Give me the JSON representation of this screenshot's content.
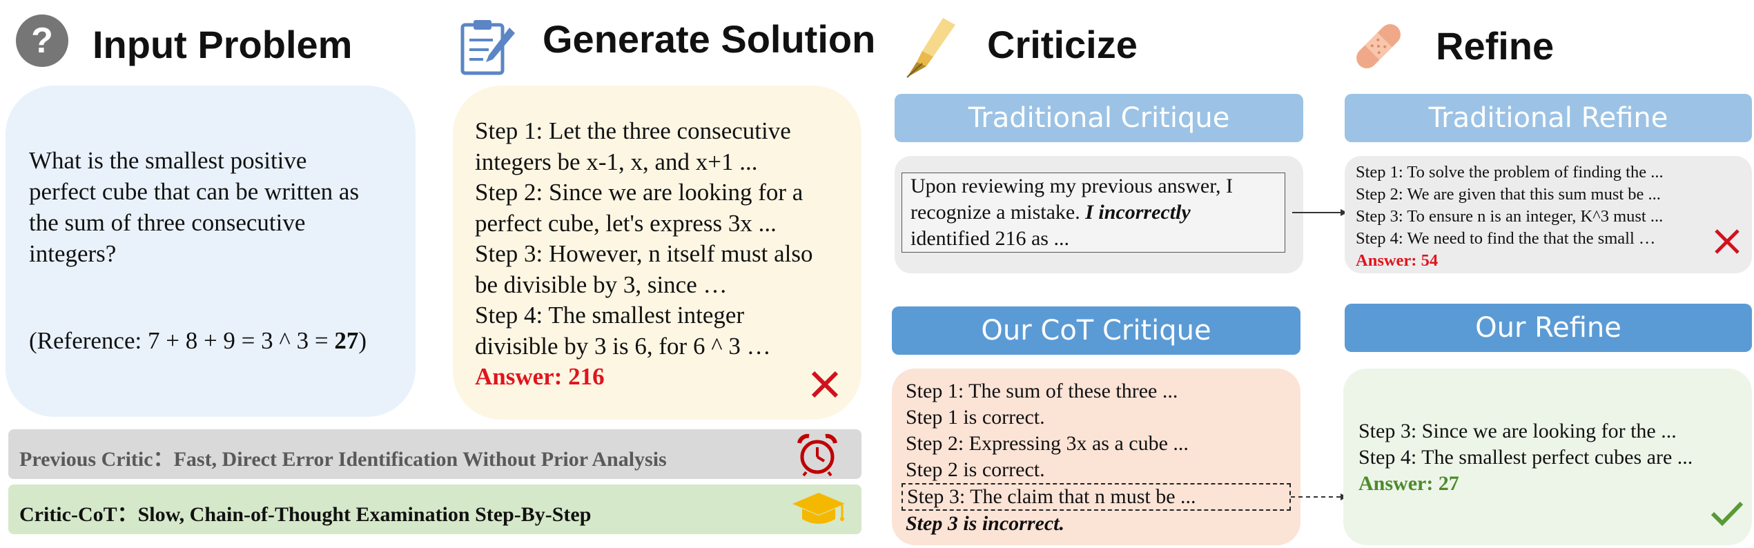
{
  "stages": {
    "input": "Input Problem",
    "generate": "Generate Solution",
    "criticize": "Criticize",
    "refine": "Refine"
  },
  "problem": {
    "lines": [
      "What is the smallest positive",
      "perfect cube that can be written as",
      "the sum of three consecutive",
      "integers?"
    ],
    "reference_prefix": "(Reference: 7 + 8 + 9 = 3 ^ 3 = ",
    "reference_value": "27",
    "reference_suffix": ")"
  },
  "solution": {
    "lines": [
      "Step 1: Let the three consecutive",
      "integers be x-1, x, and x+1 ...",
      "Step 2: Since we are looking for a",
      "perfect cube, let's express 3x ...",
      "Step 3: However, n itself must also",
      "be divisible by 3, since …",
      "Step 4: The smallest integer",
      "divisible by 3 is 6, for 6 ^ 3 …"
    ],
    "answer": "Answer: 216"
  },
  "traditional_critique": {
    "title": "Traditional Critique",
    "line1": "Upon reviewing my previous answer, I",
    "line2_plain": "recognize a mistake. ",
    "line2_emph": "I incorrectly",
    "line3": "identified 216 as ..."
  },
  "traditional_refine": {
    "title": "Traditional Refine",
    "lines": [
      "Step 1: To solve the problem of finding the ...",
      "Step 2: We are given that this sum must be ...",
      "Step 3: To ensure n is an integer, K^3 must ...",
      "Step 4: We need to find the that the small …"
    ],
    "answer": "Answer: 54"
  },
  "cot_critique": {
    "title": "Our CoT Critique",
    "lines": [
      "Step 1: The sum of these three ...",
      "Step 1 is correct.",
      "Step 2: Expressing 3x as a cube ...",
      "Step 2 is correct."
    ],
    "highlight": "Step 3: The claim that n must be ...",
    "verdict": "Step 3 is incorrect."
  },
  "our_refine": {
    "title": "Our Refine",
    "lines": [
      "Step 3: Since we are looking for the ...",
      "Step 4: The smallest perfect cubes are ..."
    ],
    "answer": "Answer: 27"
  },
  "legend": {
    "previous": "Previous Critic：Fast, Direct Error Identification Without Prior Analysis",
    "cot": "Critic-CoT：Slow, Chain-of-Thought Examination Step-By-Step"
  },
  "icons": {
    "question": "question-circle-icon",
    "clipboard": "clipboard-icon",
    "pen": "fountain-pen-icon",
    "bandage": "bandage-icon",
    "alarm": "alarm-clock-icon",
    "cap": "graduation-cap-icon"
  },
  "colors": {
    "problem_bg": "#e9f2fb",
    "solution_bg": "#fdf6e3",
    "critique_bar": "#9cc3e5",
    "cot_bar": "#5b9bd5",
    "cot_bg": "#fbe3d6",
    "refine_bg": "#edf5e9",
    "gray_bg": "#ececec",
    "wrong": "#e0141e",
    "right": "#4e8a2a"
  }
}
